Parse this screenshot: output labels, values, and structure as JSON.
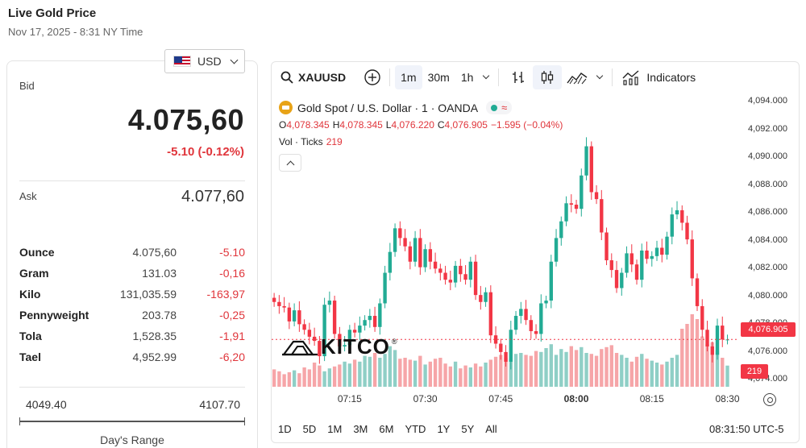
{
  "page": {
    "title": "Live Gold Price",
    "datetime": "Nov 17, 2025 - 8:31 NY Time"
  },
  "currency_select": {
    "value": "USD",
    "flag_icon": "us-flag-icon"
  },
  "quote": {
    "bid_label": "Bid",
    "bid": "4.075,60",
    "bid_change": "-5.10 (-0.12%)",
    "ask_label": "Ask",
    "ask": "4.077,60"
  },
  "units": [
    {
      "name": "Ounce",
      "price": "4.075,60",
      "change": "-5.10"
    },
    {
      "name": "Gram",
      "price": "131.03",
      "change": "-0,16"
    },
    {
      "name": "Kilo",
      "price": "131,035.59",
      "change": "-163,97"
    },
    {
      "name": "Pennyweight",
      "price": "203.78",
      "change": "-0,25"
    },
    {
      "name": "Tola",
      "price": "1,528.35",
      "change": "-1,91"
    },
    {
      "name": "Tael",
      "price": "4,952.99",
      "change": "-6,20"
    }
  ],
  "days_range": {
    "low": "4049.40",
    "high": "4107.70",
    "label": "Day's Range",
    "current_position": 0.45
  },
  "chart_toolbar": {
    "symbol": "XAUUSD",
    "timeframes": [
      "1m",
      "30m",
      "1h"
    ],
    "active_timeframe": "1m",
    "indicators_label": "Indicators"
  },
  "chart_legend": {
    "name": "Gold Spot / U.S. Dollar · 1 · OANDA",
    "ohlc": [
      {
        "key": "O",
        "value": "4,078.345"
      },
      {
        "key": "H",
        "value": "4,078.345"
      },
      {
        "key": "L",
        "value": "4,076.220"
      },
      {
        "key": "C",
        "value": "4,076.905"
      }
    ],
    "change": "−1.595 (−0.04%)",
    "volume_label": "Vol · Ticks",
    "volume_value": "219"
  },
  "watermark": {
    "text": "KITCO",
    "trademark": "®"
  },
  "range_buttons": [
    "1D",
    "5D",
    "1M",
    "3M",
    "6M",
    "YTD",
    "1Y",
    "5Y",
    "All"
  ],
  "clock": "08:31:50 UTC-5",
  "colors": {
    "up": "#22ab94",
    "down": "#f23645",
    "up_volume": "#8fcfc6",
    "down_volume": "#f6a5a8"
  },
  "chart_data": {
    "type": "candlestick",
    "title": "Gold Spot / U.S. Dollar · 1 · OANDA",
    "y_ticks": [
      "4,094.000",
      "4,092.000",
      "4,090.000",
      "4,088.000",
      "4,086.000",
      "4,084.000",
      "4,082.000",
      "4,080.000",
      "4,078.000",
      "4,076.000",
      "4,074.000"
    ],
    "y_tick_values": [
      4094,
      4092,
      4090,
      4088,
      4086,
      4084,
      4082,
      4080,
      4078,
      4076,
      4074
    ],
    "ylim": [
      4073.5,
      4094.6
    ],
    "x_ticks": [
      "07:15",
      "07:30",
      "07:45",
      "08:00",
      "08:15",
      "08:30"
    ],
    "x_tick_minutes": [
      15,
      30,
      45,
      60,
      75,
      90
    ],
    "xlim": [
      -0.5,
      92
    ],
    "last_price": "4,076.905",
    "last_price_value": 4076.905,
    "last_volume": "219",
    "vol_max": 750,
    "close": [
      4079.6,
      4079.3,
      4079.2,
      4078.2,
      4079.0,
      4078.0,
      4077.6,
      4077.1,
      4076.8,
      4075.7,
      4079.4,
      4079.7,
      4077.3,
      4076.4,
      4076.5,
      4077.6,
      4077.4,
      4077.9,
      4078.3,
      4078.6,
      4077.8,
      4079.5,
      4081.7,
      4083.2,
      4084.9,
      4084.2,
      4083.6,
      4082.5,
      4084.2,
      4082.1,
      4083.4,
      4082.5,
      4082.0,
      4081.7,
      4081.2,
      4081.0,
      4082.2,
      4081.6,
      4081.2,
      4082.5,
      4080.1,
      4079.6,
      4080.3,
      4077.2,
      4076.6,
      4076.0,
      4075.3,
      4077.6,
      4078.6,
      4079.1,
      4078.3,
      4077.5,
      4077.3,
      4079.5,
      4079.7,
      4082.5,
      4084.2,
      4085.4,
      4086.7,
      4086.6,
      4086.3,
      4088.7,
      4090.8,
      4087.5,
      4087.0,
      4084.6,
      4082.6,
      4081.9,
      4080.6,
      4081.7,
      4083.1,
      4082.3,
      4081.2,
      4083.3,
      4082.7,
      4082.9,
      4083.5,
      4083.0,
      4084.3,
      4085.9,
      4086.2,
      4085.3,
      4084.1,
      4081.3,
      4079.3,
      4077.6,
      4076.4,
      4075.8,
      4077.9,
      4076.9,
      4076.9
    ],
    "volume": [
      180,
      160,
      130,
      150,
      170,
      140,
      200,
      180,
      250,
      220,
      160,
      190,
      210,
      230,
      260,
      240,
      280,
      260,
      320,
      310,
      350,
      300,
      340,
      420,
      380,
      290,
      300,
      280,
      270,
      320,
      230,
      260,
      290,
      300,
      240,
      210,
      260,
      190,
      220,
      200,
      240,
      210,
      250,
      280,
      310,
      330,
      300,
      290,
      340,
      350,
      330,
      320,
      370,
      360,
      400,
      440,
      330,
      390,
      360,
      420,
      380,
      410,
      350,
      340,
      320,
      390,
      410,
      430,
      350,
      330,
      300,
      260,
      310,
      340,
      290,
      270,
      250,
      230,
      260,
      300,
      330,
      600,
      650,
      750,
      700,
      520,
      440,
      460,
      380,
      300,
      219
    ]
  }
}
